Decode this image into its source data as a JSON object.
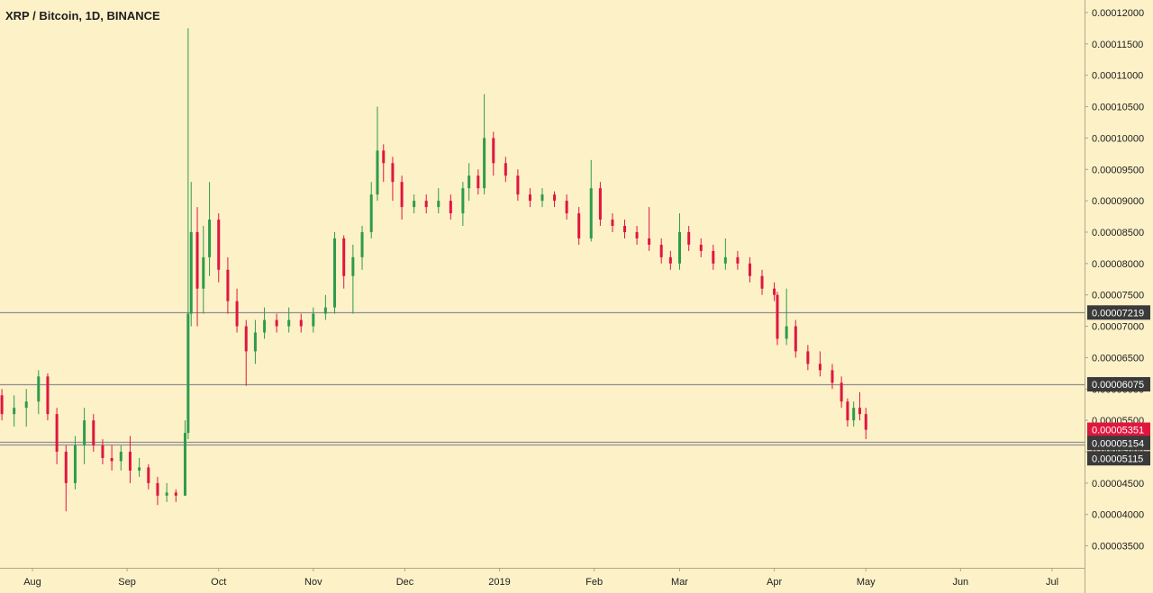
{
  "chart_data": {
    "type": "candlestick",
    "title": "XRP / Bitcoin, 1D, BINANCE",
    "colors": {
      "background": "#fdf1c8",
      "up": "#2e9b4c",
      "down": "#e0163f",
      "level_line": "#8f8f8f",
      "tag_dark": "#3a3a3a",
      "tag_current": "#e0163f",
      "axis_line": "#b0a788"
    },
    "y_ticks": [
      "0.00003500",
      "0.00004000",
      "0.00004500",
      "0.00005000",
      "0.00005500",
      "0.00006000",
      "0.00006500",
      "0.00007000",
      "0.00007500",
      "0.00008000",
      "0.00008500",
      "0.00009000",
      "0.00009500",
      "0.00010000",
      "0.00010500",
      "0.00011000",
      "0.00011500",
      "0.00012000"
    ],
    "ylim": [
      3.15e-05,
      0.000122
    ],
    "x_ticks": [
      {
        "label": "Aug",
        "date": "2018-08-01"
      },
      {
        "label": "Sep",
        "date": "2018-09-01"
      },
      {
        "label": "Oct",
        "date": "2018-10-01"
      },
      {
        "label": "Nov",
        "date": "2018-11-01"
      },
      {
        "label": "Dec",
        "date": "2018-12-01"
      },
      {
        "label": "2019",
        "date": "2019-01-01"
      },
      {
        "label": "Feb",
        "date": "2019-02-01"
      },
      {
        "label": "Mar",
        "date": "2019-03-01"
      },
      {
        "label": "Apr",
        "date": "2019-04-01"
      },
      {
        "label": "May",
        "date": "2019-05-01"
      },
      {
        "label": "Jun",
        "date": "2019-06-01"
      },
      {
        "label": "Jul",
        "date": "2019-07-01"
      }
    ],
    "horizontal_levels": [
      {
        "label": "0.00007219",
        "value": 7.219e-05
      },
      {
        "label": "0.00006075",
        "value": 6.075e-05
      },
      {
        "label": "0.00005154",
        "value": 5.154e-05
      },
      {
        "label": "0.00005115",
        "value": 5.115e-05
      }
    ],
    "last_price": {
      "label": "0.00005351",
      "value": 5.351e-05
    },
    "series": [
      {
        "date": "2018-07-22",
        "open": 5.9,
        "high": 6.0,
        "low": 5.5,
        "close": 5.6
      },
      {
        "date": "2018-07-26",
        "open": 5.6,
        "high": 5.9,
        "low": 5.4,
        "close": 5.7
      },
      {
        "date": "2018-07-30",
        "open": 5.7,
        "high": 6.0,
        "low": 5.4,
        "close": 5.8
      },
      {
        "date": "2018-08-03",
        "open": 5.8,
        "high": 6.3,
        "low": 5.6,
        "close": 6.2
      },
      {
        "date": "2018-08-06",
        "open": 6.2,
        "high": 6.25,
        "low": 5.5,
        "close": 5.6
      },
      {
        "date": "2018-08-09",
        "open": 5.6,
        "high": 5.7,
        "low": 4.8,
        "close": 5.0
      },
      {
        "date": "2018-08-12",
        "open": 5.0,
        "high": 5.1,
        "low": 4.05,
        "close": 4.5
      },
      {
        "date": "2018-08-15",
        "open": 4.5,
        "high": 5.25,
        "low": 4.4,
        "close": 5.1
      },
      {
        "date": "2018-08-18",
        "open": 5.1,
        "high": 5.7,
        "low": 4.8,
        "close": 5.5
      },
      {
        "date": "2018-08-21",
        "open": 5.5,
        "high": 5.6,
        "low": 5.0,
        "close": 5.1
      },
      {
        "date": "2018-08-24",
        "open": 5.1,
        "high": 5.2,
        "low": 4.8,
        "close": 4.9
      },
      {
        "date": "2018-08-27",
        "open": 4.9,
        "high": 5.1,
        "low": 4.7,
        "close": 4.85
      },
      {
        "date": "2018-08-30",
        "open": 4.85,
        "high": 5.1,
        "low": 4.7,
        "close": 5.0
      },
      {
        "date": "2018-09-02",
        "open": 5.0,
        "high": 5.25,
        "low": 4.5,
        "close": 4.7
      },
      {
        "date": "2018-09-05",
        "open": 4.7,
        "high": 4.9,
        "low": 4.6,
        "close": 4.75
      },
      {
        "date": "2018-09-08",
        "open": 4.75,
        "high": 4.8,
        "low": 4.4,
        "close": 4.5
      },
      {
        "date": "2018-09-11",
        "open": 4.5,
        "high": 4.6,
        "low": 4.15,
        "close": 4.3
      },
      {
        "date": "2018-09-14",
        "open": 4.3,
        "high": 4.5,
        "low": 4.2,
        "close": 4.35
      },
      {
        "date": "2018-09-17",
        "open": 4.35,
        "high": 4.4,
        "low": 4.2,
        "close": 4.3
      },
      {
        "date": "2018-09-20",
        "open": 4.3,
        "high": 5.5,
        "low": 4.3,
        "close": 5.3
      },
      {
        "date": "2018-09-21",
        "open": 5.3,
        "high": 11.75,
        "low": 5.2,
        "close": 7.2
      },
      {
        "date": "2018-09-22",
        "open": 7.2,
        "high": 9.3,
        "low": 7.0,
        "close": 8.5
      },
      {
        "date": "2018-09-24",
        "open": 8.5,
        "high": 8.9,
        "low": 7.0,
        "close": 7.6
      },
      {
        "date": "2018-09-26",
        "open": 7.6,
        "high": 8.6,
        "low": 7.2,
        "close": 8.1
      },
      {
        "date": "2018-09-28",
        "open": 8.1,
        "high": 9.3,
        "low": 7.8,
        "close": 8.7
      },
      {
        "date": "2018-10-01",
        "open": 8.7,
        "high": 8.8,
        "low": 7.7,
        "close": 7.9
      },
      {
        "date": "2018-10-04",
        "open": 7.9,
        "high": 8.1,
        "low": 7.2,
        "close": 7.4
      },
      {
        "date": "2018-10-07",
        "open": 7.4,
        "high": 7.6,
        "low": 6.9,
        "close": 7.0
      },
      {
        "date": "2018-10-10",
        "open": 7.0,
        "high": 7.1,
        "low": 6.05,
        "close": 6.6
      },
      {
        "date": "2018-10-13",
        "open": 6.6,
        "high": 7.1,
        "low": 6.4,
        "close": 6.9
      },
      {
        "date": "2018-10-16",
        "open": 6.9,
        "high": 7.3,
        "low": 6.8,
        "close": 7.1
      },
      {
        "date": "2018-10-20",
        "open": 7.1,
        "high": 7.2,
        "low": 6.9,
        "close": 7.0
      },
      {
        "date": "2018-10-24",
        "open": 7.0,
        "high": 7.3,
        "low": 6.9,
        "close": 7.1
      },
      {
        "date": "2018-10-28",
        "open": 7.1,
        "high": 7.2,
        "low": 6.9,
        "close": 7.0
      },
      {
        "date": "2018-11-01",
        "open": 7.0,
        "high": 7.3,
        "low": 6.9,
        "close": 7.2
      },
      {
        "date": "2018-11-05",
        "open": 7.2,
        "high": 7.5,
        "low": 7.1,
        "close": 7.3
      },
      {
        "date": "2018-11-08",
        "open": 7.3,
        "high": 8.5,
        "low": 7.2,
        "close": 8.4
      },
      {
        "date": "2018-11-11",
        "open": 8.4,
        "high": 8.45,
        "low": 7.6,
        "close": 7.8
      },
      {
        "date": "2018-11-14",
        "open": 7.8,
        "high": 8.3,
        "low": 7.2,
        "close": 8.1
      },
      {
        "date": "2018-11-17",
        "open": 8.1,
        "high": 8.6,
        "low": 7.9,
        "close": 8.5
      },
      {
        "date": "2018-11-20",
        "open": 8.5,
        "high": 9.3,
        "low": 8.4,
        "close": 9.1
      },
      {
        "date": "2018-11-22",
        "open": 9.1,
        "high": 10.5,
        "low": 9.0,
        "close": 9.8
      },
      {
        "date": "2018-11-24",
        "open": 9.8,
        "high": 9.9,
        "low": 9.3,
        "close": 9.6
      },
      {
        "date": "2018-11-27",
        "open": 9.6,
        "high": 9.7,
        "low": 9.0,
        "close": 9.3
      },
      {
        "date": "2018-11-30",
        "open": 9.3,
        "high": 9.4,
        "low": 8.7,
        "close": 8.9
      },
      {
        "date": "2018-12-04",
        "open": 8.9,
        "high": 9.1,
        "low": 8.8,
        "close": 9.0
      },
      {
        "date": "2018-12-08",
        "open": 9.0,
        "high": 9.1,
        "low": 8.8,
        "close": 8.9
      },
      {
        "date": "2018-12-12",
        "open": 8.9,
        "high": 9.2,
        "low": 8.8,
        "close": 9.0
      },
      {
        "date": "2018-12-16",
        "open": 9.0,
        "high": 9.1,
        "low": 8.7,
        "close": 8.8
      },
      {
        "date": "2018-12-20",
        "open": 8.8,
        "high": 9.3,
        "low": 8.6,
        "close": 9.2
      },
      {
        "date": "2018-12-22",
        "open": 9.2,
        "high": 9.6,
        "low": 9.0,
        "close": 9.4
      },
      {
        "date": "2018-12-25",
        "open": 9.4,
        "high": 9.5,
        "low": 9.1,
        "close": 9.2
      },
      {
        "date": "2018-12-27",
        "open": 9.2,
        "high": 10.7,
        "low": 9.1,
        "close": 10.0
      },
      {
        "date": "2018-12-30",
        "open": 10.0,
        "high": 10.1,
        "low": 9.4,
        "close": 9.6
      },
      {
        "date": "2019-01-03",
        "open": 9.6,
        "high": 9.7,
        "low": 9.3,
        "close": 9.4
      },
      {
        "date": "2019-01-07",
        "open": 9.4,
        "high": 9.5,
        "low": 9.0,
        "close": 9.1
      },
      {
        "date": "2019-01-11",
        "open": 9.1,
        "high": 9.2,
        "low": 8.9,
        "close": 9.0
      },
      {
        "date": "2019-01-15",
        "open": 9.0,
        "high": 9.2,
        "low": 8.9,
        "close": 9.1
      },
      {
        "date": "2019-01-19",
        "open": 9.1,
        "high": 9.15,
        "low": 8.9,
        "close": 9.0
      },
      {
        "date": "2019-01-23",
        "open": 9.0,
        "high": 9.1,
        "low": 8.7,
        "close": 8.8
      },
      {
        "date": "2019-01-27",
        "open": 8.8,
        "high": 8.9,
        "low": 8.3,
        "close": 8.4
      },
      {
        "date": "2019-01-31",
        "open": 8.4,
        "high": 9.65,
        "low": 8.35,
        "close": 9.2
      },
      {
        "date": "2019-02-03",
        "open": 9.2,
        "high": 9.3,
        "low": 8.6,
        "close": 8.7
      },
      {
        "date": "2019-02-07",
        "open": 8.7,
        "high": 8.8,
        "low": 8.5,
        "close": 8.6
      },
      {
        "date": "2019-02-11",
        "open": 8.6,
        "high": 8.7,
        "low": 8.4,
        "close": 8.5
      },
      {
        "date": "2019-02-15",
        "open": 8.5,
        "high": 8.6,
        "low": 8.3,
        "close": 8.4
      },
      {
        "date": "2019-02-19",
        "open": 8.4,
        "high": 8.9,
        "low": 8.2,
        "close": 8.3
      },
      {
        "date": "2019-02-23",
        "open": 8.3,
        "high": 8.4,
        "low": 8.0,
        "close": 8.1
      },
      {
        "date": "2019-02-26",
        "open": 8.1,
        "high": 8.2,
        "low": 7.9,
        "close": 8.0
      },
      {
        "date": "2019-03-01",
        "open": 8.0,
        "high": 8.8,
        "low": 7.9,
        "close": 8.5
      },
      {
        "date": "2019-03-04",
        "open": 8.5,
        "high": 8.6,
        "low": 8.2,
        "close": 8.3
      },
      {
        "date": "2019-03-08",
        "open": 8.3,
        "high": 8.4,
        "low": 8.1,
        "close": 8.2
      },
      {
        "date": "2019-03-12",
        "open": 8.2,
        "high": 8.3,
        "low": 7.9,
        "close": 8.0
      },
      {
        "date": "2019-03-16",
        "open": 8.0,
        "high": 8.4,
        "low": 7.9,
        "close": 8.1
      },
      {
        "date": "2019-03-20",
        "open": 8.1,
        "high": 8.2,
        "low": 7.9,
        "close": 8.0
      },
      {
        "date": "2019-03-24",
        "open": 8.0,
        "high": 8.1,
        "low": 7.7,
        "close": 7.8
      },
      {
        "date": "2019-03-28",
        "open": 7.8,
        "high": 7.9,
        "low": 7.5,
        "close": 7.6
      },
      {
        "date": "2019-04-01",
        "open": 7.6,
        "high": 7.7,
        "low": 7.4,
        "close": 7.5
      },
      {
        "date": "2019-04-02",
        "open": 7.5,
        "high": 7.55,
        "low": 6.7,
        "close": 6.8
      },
      {
        "date": "2019-04-05",
        "open": 6.8,
        "high": 7.6,
        "low": 6.7,
        "close": 7.0
      },
      {
        "date": "2019-04-08",
        "open": 7.0,
        "high": 7.1,
        "low": 6.5,
        "close": 6.6
      },
      {
        "date": "2019-04-12",
        "open": 6.6,
        "high": 6.7,
        "low": 6.3,
        "close": 6.4
      },
      {
        "date": "2019-04-16",
        "open": 6.4,
        "high": 6.6,
        "low": 6.2,
        "close": 6.3
      },
      {
        "date": "2019-04-20",
        "open": 6.3,
        "high": 6.4,
        "low": 6.0,
        "close": 6.1
      },
      {
        "date": "2019-04-23",
        "open": 6.1,
        "high": 6.2,
        "low": 5.7,
        "close": 5.8
      },
      {
        "date": "2019-04-25",
        "open": 5.8,
        "high": 5.85,
        "low": 5.4,
        "close": 5.5
      },
      {
        "date": "2019-04-27",
        "open": 5.5,
        "high": 5.8,
        "low": 5.4,
        "close": 5.7
      },
      {
        "date": "2019-04-29",
        "open": 5.7,
        "high": 5.95,
        "low": 5.5,
        "close": 5.6
      },
      {
        "date": "2019-05-01",
        "open": 5.6,
        "high": 5.7,
        "low": 5.2,
        "close": 5.35
      }
    ]
  }
}
